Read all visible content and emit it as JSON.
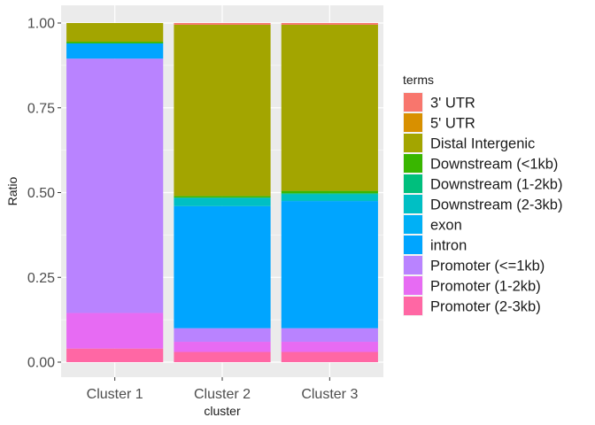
{
  "chart_data": {
    "type": "bar",
    "stacked": true,
    "xlabel": "cluster",
    "ylabel": "Ratio",
    "ylim": [
      0,
      1
    ],
    "yticks": [
      "0.00",
      "0.25",
      "0.50",
      "0.75",
      "1.00"
    ],
    "grid": true,
    "legend_position": "right",
    "legend_title": "terms",
    "categories": [
      "Cluster 1",
      "Cluster 2",
      "Cluster 3"
    ],
    "series": [
      {
        "name": "3' UTR",
        "color": "#F8766D",
        "values": [
          0.0,
          0.005,
          0.005
        ]
      },
      {
        "name": "5' UTR",
        "color": "#D89000",
        "values": [
          0.0,
          0.0,
          0.0
        ]
      },
      {
        "name": "Distal Intergenic",
        "color": "#A3A500",
        "values": [
          0.055,
          0.505,
          0.49
        ]
      },
      {
        "name": "Downstream (<1kb)",
        "color": "#39B600",
        "values": [
          0.005,
          0.005,
          0.007
        ]
      },
      {
        "name": "Downstream (1-2kb)",
        "color": "#00BF7D",
        "values": [
          0.0,
          0.0,
          0.003
        ]
      },
      {
        "name": "Downstream (2-3kb)",
        "color": "#00BFC4",
        "values": [
          0.0,
          0.025,
          0.02
        ]
      },
      {
        "name": "exon",
        "color": "#00B0F6",
        "values": [
          0.0,
          0.0,
          0.0
        ]
      },
      {
        "name": "intron",
        "color": "#00A5FF",
        "values": [
          0.045,
          0.36,
          0.375
        ]
      },
      {
        "name": "Promoter (<=1kb)",
        "color": "#B983FF",
        "values": [
          0.75,
          0.04,
          0.04
        ]
      },
      {
        "name": "Promoter (1-2kb)",
        "color": "#E76BF3",
        "values": [
          0.105,
          0.03,
          0.03
        ]
      },
      {
        "name": "Promoter (2-3kb)",
        "color": "#FF67A4",
        "values": [
          0.04,
          0.03,
          0.03
        ]
      }
    ]
  }
}
